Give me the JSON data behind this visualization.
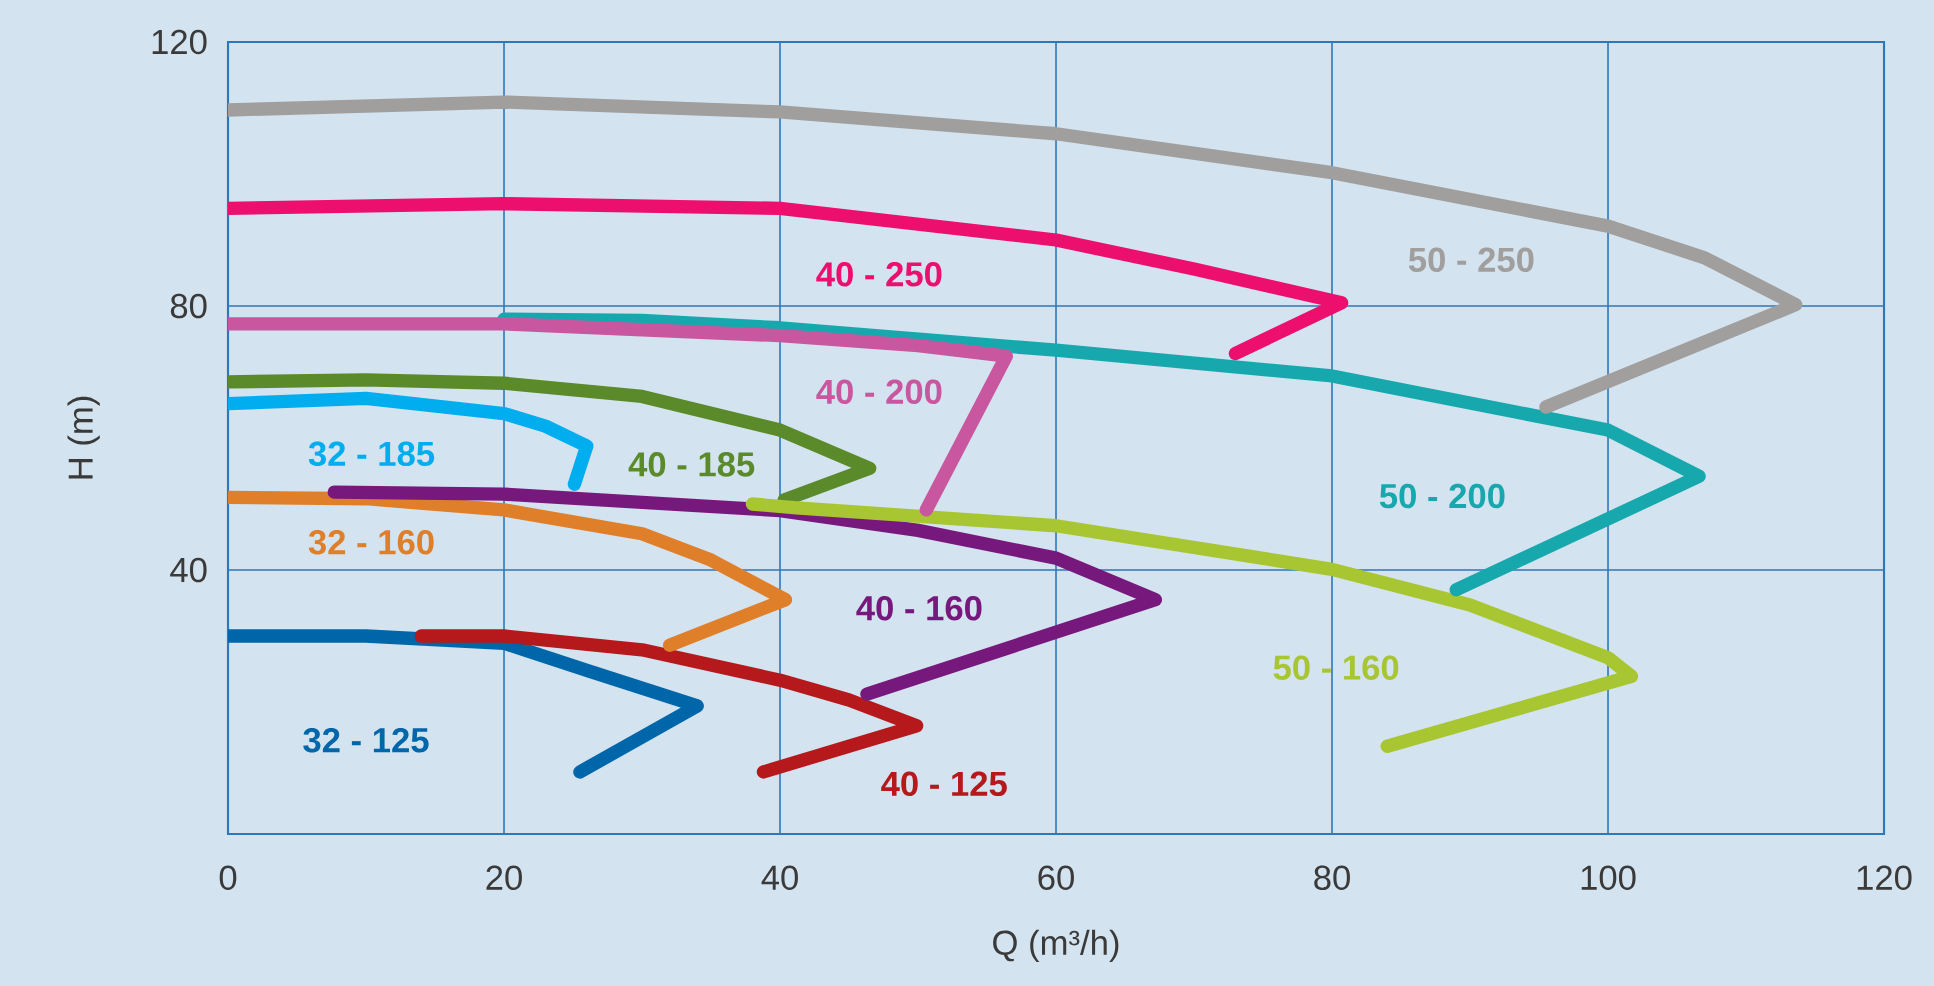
{
  "chart_data": {
    "type": "line",
    "xlabel": "Q (m³/h)",
    "ylabel": "H (m)",
    "xlim": [
      0,
      120
    ],
    "ylim": [
      0,
      120
    ],
    "xticks": [
      0,
      20,
      40,
      60,
      80,
      100,
      120
    ],
    "yticks": [
      40,
      80,
      120
    ],
    "grid": true,
    "legend": false,
    "marker": "none",
    "line_style": "solid",
    "series": [
      {
        "name": "32 - 125",
        "color": "#0066aa",
        "x": [
          0,
          10,
          20,
          26,
          30,
          34,
          25.5
        ],
        "values": [
          30,
          30,
          28.9,
          24.8,
          22.1,
          19.4,
          9.4
        ]
      },
      {
        "name": "40 - 125",
        "color": "#b5191b",
        "x": [
          14,
          20,
          30,
          40,
          45,
          49.9,
          38.8
        ],
        "values": [
          30,
          30,
          27.9,
          23.3,
          20.3,
          16.4,
          9.4
        ]
      },
      {
        "name": "32 - 160",
        "color": "#e07f2a",
        "x": [
          0,
          10,
          20,
          30,
          35,
          40.4,
          32
        ],
        "values": [
          51,
          50.8,
          49.1,
          45.5,
          41.5,
          35.5,
          28.6
        ]
      },
      {
        "name": "32 - 185",
        "color": "#00aeef",
        "x": [
          0,
          10,
          20,
          23,
          26,
          25.1
        ],
        "values": [
          65.2,
          66,
          63.7,
          61.8,
          58.8,
          53
        ]
      },
      {
        "name": "40 - 185",
        "color": "#5b8a2a",
        "x": [
          0,
          10,
          20,
          30,
          40,
          46.5,
          40.3
        ],
        "values": [
          68.5,
          68.8,
          68.3,
          66.3,
          61.2,
          55.4,
          50.6
        ]
      },
      {
        "name": "40 - 160",
        "color": "#77197c",
        "x": [
          7.7,
          20,
          40,
          50,
          60,
          67.2,
          46.3
        ],
        "values": [
          51.8,
          51.5,
          49,
          46,
          41.8,
          35.5,
          21.2
        ]
      },
      {
        "name": "50 - 160",
        "color": "#a8c631",
        "x": [
          38,
          41.2,
          60,
          80,
          90,
          100,
          101.7,
          84
        ],
        "values": [
          50,
          49.4,
          46.7,
          40.1,
          34.7,
          26.7,
          23.9,
          13.3
        ]
      },
      {
        "name": "50 - 200",
        "color": "#17a8ad",
        "x": [
          20,
          30,
          40,
          60,
          80,
          100,
          106.6,
          89
        ],
        "values": [
          78,
          77.8,
          76.7,
          73.3,
          69.4,
          61.2,
          54.2,
          37
        ]
      },
      {
        "name": "40 - 200",
        "color": "#c9579f",
        "x": [
          0,
          20,
          40,
          50,
          56.4,
          50.6
        ],
        "values": [
          77.3,
          77.3,
          75.5,
          74,
          72.4,
          49.1
        ]
      },
      {
        "name": "40 - 250",
        "color": "#ec0f6e",
        "x": [
          0,
          20,
          40,
          60,
          70,
          80.7,
          73
        ],
        "values": [
          94.8,
          95.5,
          94.8,
          90,
          85.6,
          80.5,
          72.8
        ]
      },
      {
        "name": "50 - 250",
        "color": "#a19e9e",
        "x": [
          0,
          20,
          40,
          60,
          80,
          100,
          107,
          113.6,
          95.5
        ],
        "values": [
          109.7,
          110.9,
          109.4,
          106.1,
          100.2,
          92.1,
          87.3,
          80.2,
          64.7
        ]
      }
    ]
  }
}
